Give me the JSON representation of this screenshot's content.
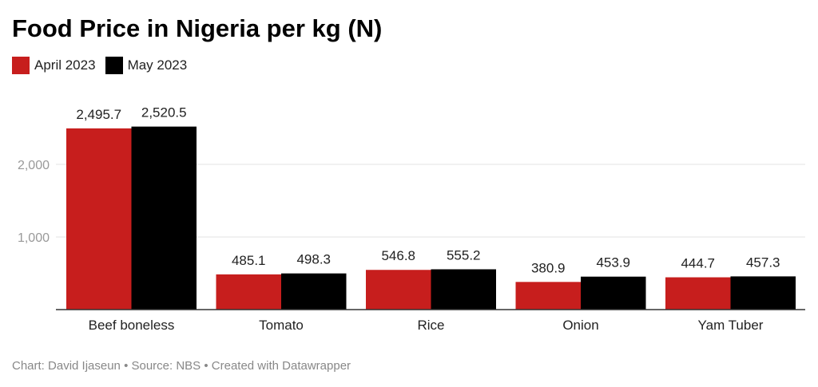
{
  "chart_data": {
    "type": "bar",
    "title": "Food Price in Nigeria per kg (N)",
    "categories": [
      "Beef boneless",
      "Tomato",
      "Rice",
      "Onion",
      "Yam Tuber"
    ],
    "series": [
      {
        "name": "April 2023",
        "color": "#c71e1d",
        "values": [
          2495.7,
          485.1,
          546.8,
          380.9,
          444.7
        ],
        "labels": [
          "2,495.7",
          "485.1",
          "546.8",
          "380.9",
          "444.7"
        ]
      },
      {
        "name": "May 2023",
        "color": "#000000",
        "values": [
          2520.5,
          498.3,
          555.2,
          453.9,
          457.3
        ],
        "labels": [
          "2,520.5",
          "498.3",
          "555.2",
          "453.9",
          "457.3"
        ]
      }
    ],
    "yticks": [
      1000,
      2000
    ],
    "ytick_labels": [
      "1,000",
      "2,000"
    ],
    "ylim": [
      0,
      2600
    ],
    "grid": true,
    "legend": "top-left",
    "xlabel": "",
    "ylabel": ""
  },
  "footer": "Chart: David Ijaseun • Source: NBS • Created with Datawrapper"
}
